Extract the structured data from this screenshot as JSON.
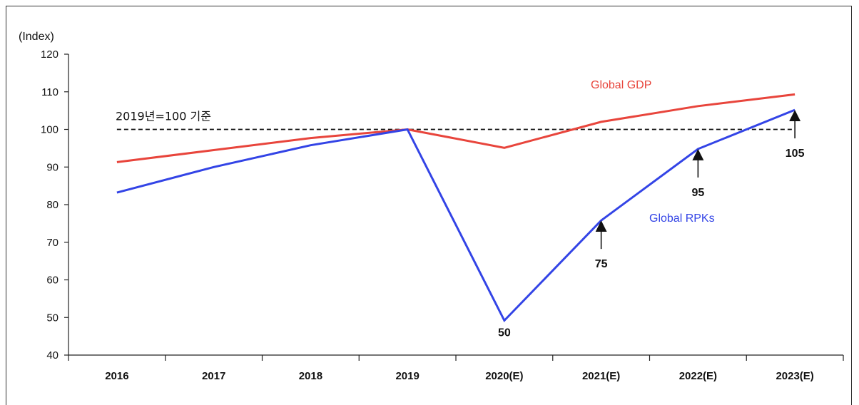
{
  "chart_data": {
    "type": "line",
    "unit_label": "(Index)",
    "categories": [
      "2016",
      "2017",
      "2018",
      "2019",
      "2020(E)",
      "2021(E)",
      "2022(E)",
      "2023(E)"
    ],
    "ylim": [
      40,
      120
    ],
    "yticks": [
      40,
      50,
      60,
      70,
      80,
      90,
      100,
      110,
      120
    ],
    "grid": false,
    "reference_line": {
      "value": 100,
      "label": "2019년=100 기준"
    },
    "series": [
      {
        "name": "Global GDP",
        "color": "#e8453c",
        "values": [
          91.3,
          94.5,
          97.7,
          100,
          95.1,
          102,
          106.2,
          109.3
        ]
      },
      {
        "name": "Global RPKs",
        "color": "#3344e6",
        "values": [
          83.2,
          90,
          95.8,
          100,
          49.2,
          75.8,
          94.8,
          105.2
        ]
      }
    ],
    "annotations": [
      {
        "series": "Global RPKs",
        "category": "2020(E)",
        "label": "50",
        "arrow": false
      },
      {
        "series": "Global RPKs",
        "category": "2021(E)",
        "label": "75",
        "arrow": true
      },
      {
        "series": "Global RPKs",
        "category": "2022(E)",
        "label": "95",
        "arrow": true
      },
      {
        "series": "Global RPKs",
        "category": "2023(E)",
        "label": "105",
        "arrow": true
      }
    ]
  }
}
